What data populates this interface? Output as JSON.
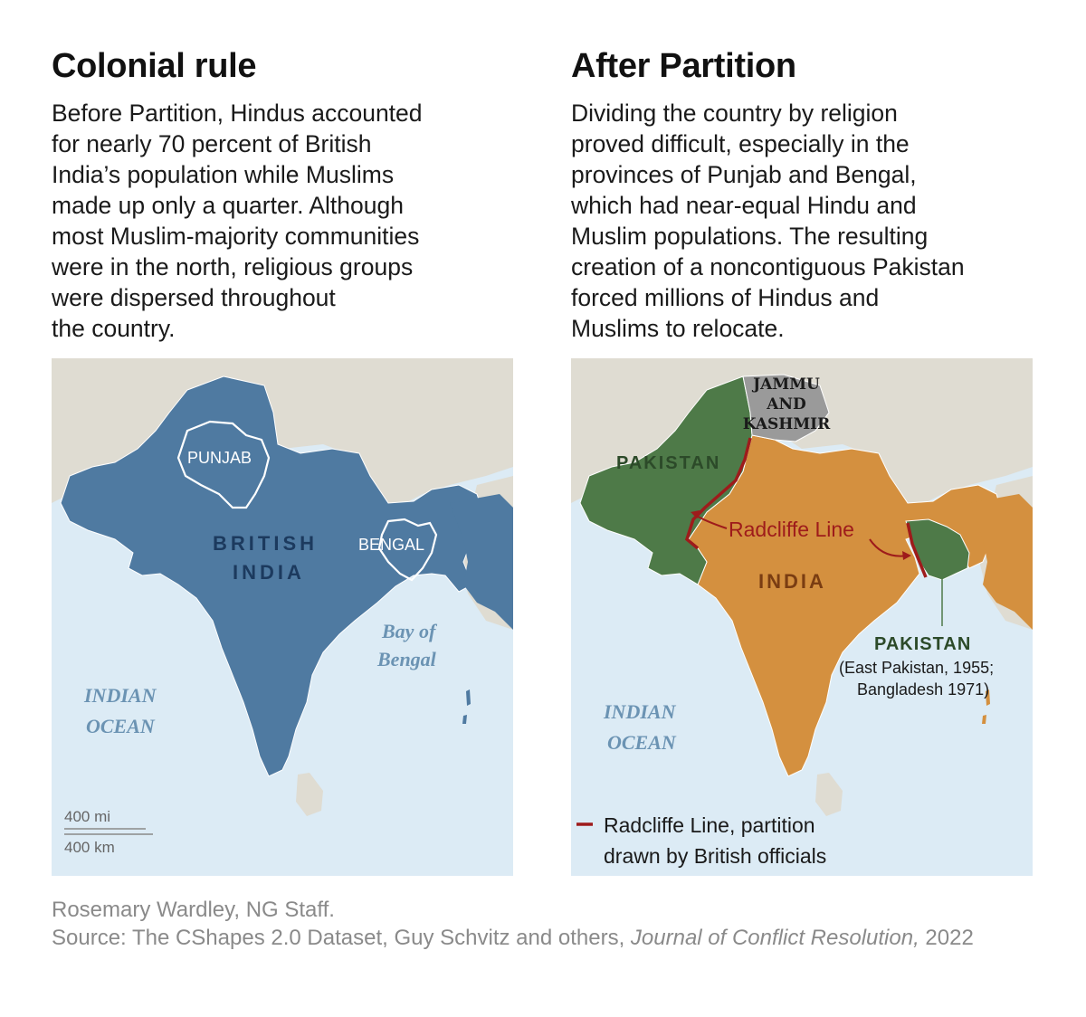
{
  "left": {
    "title": "Colonial rule",
    "description": "Before Partition, Hindus accounted\nfor nearly 70 percent of British\nIndia’s population while Muslims\nmade up only a quarter. Although\nmost Muslim-majority communities\nwere in the north, religious groups\nwere dispersed throughout\nthe country.",
    "map": {
      "labels": {
        "punjab": "PUNJAB",
        "bengal": "BENGAL",
        "british_india_1": "BRITISH",
        "british_india_2": "INDIA",
        "bay_1": "Bay of",
        "bay_2": "Bengal",
        "ocean_1": "INDIAN",
        "ocean_2": "OCEAN"
      },
      "scale": {
        "miles": "400 mi",
        "km": "400 km"
      },
      "colors": {
        "land": "#4f7aa1",
        "sea": "#dcebf5",
        "neighbor": "#dfdcd2",
        "border": "#ffffff"
      }
    }
  },
  "right": {
    "title": "After Partition",
    "description": "Dividing the country by religion\nproved difficult, especially in the\nprovinces of Punjab and Bengal,\nwhich had near-equal Hindu and\nMuslim populations. The resulting\ncreation of a noncontiguous Pakistan\nforced millions of Hindus and\nMuslims to relocate.",
    "map": {
      "labels": {
        "jk_1": "JAMMU",
        "jk_2": "AND",
        "jk_3": "KASHMIR",
        "pakistan_west": "PAKISTAN",
        "radcliffe": "Radcliffe Line",
        "india": "INDIA",
        "pakistan_east": "PAKISTAN",
        "east_note_1": "(East Pakistan, 1955;",
        "east_note_2": "Bangladesh 1971)",
        "ocean_1": "INDIAN",
        "ocean_2": "OCEAN"
      },
      "legend": {
        "line_1": "Radcliffe Line, partition",
        "line_2": "drawn by British officials"
      },
      "colors": {
        "india": "#d4903f",
        "pakistan": "#4e7a48",
        "kashmir": "#9a9a9a",
        "line": "#9e1b1b",
        "sea": "#dcebf5",
        "neighbor": "#dfdcd2"
      }
    }
  },
  "footer": {
    "credit": "Rosemary Wardley, NG Staff.",
    "source_prefix": "Source: The CShapes 2.0 Dataset, Guy Schvitz and others,",
    "source_journal": "Journal of Conflict Resolution,",
    "source_year": "2022"
  }
}
